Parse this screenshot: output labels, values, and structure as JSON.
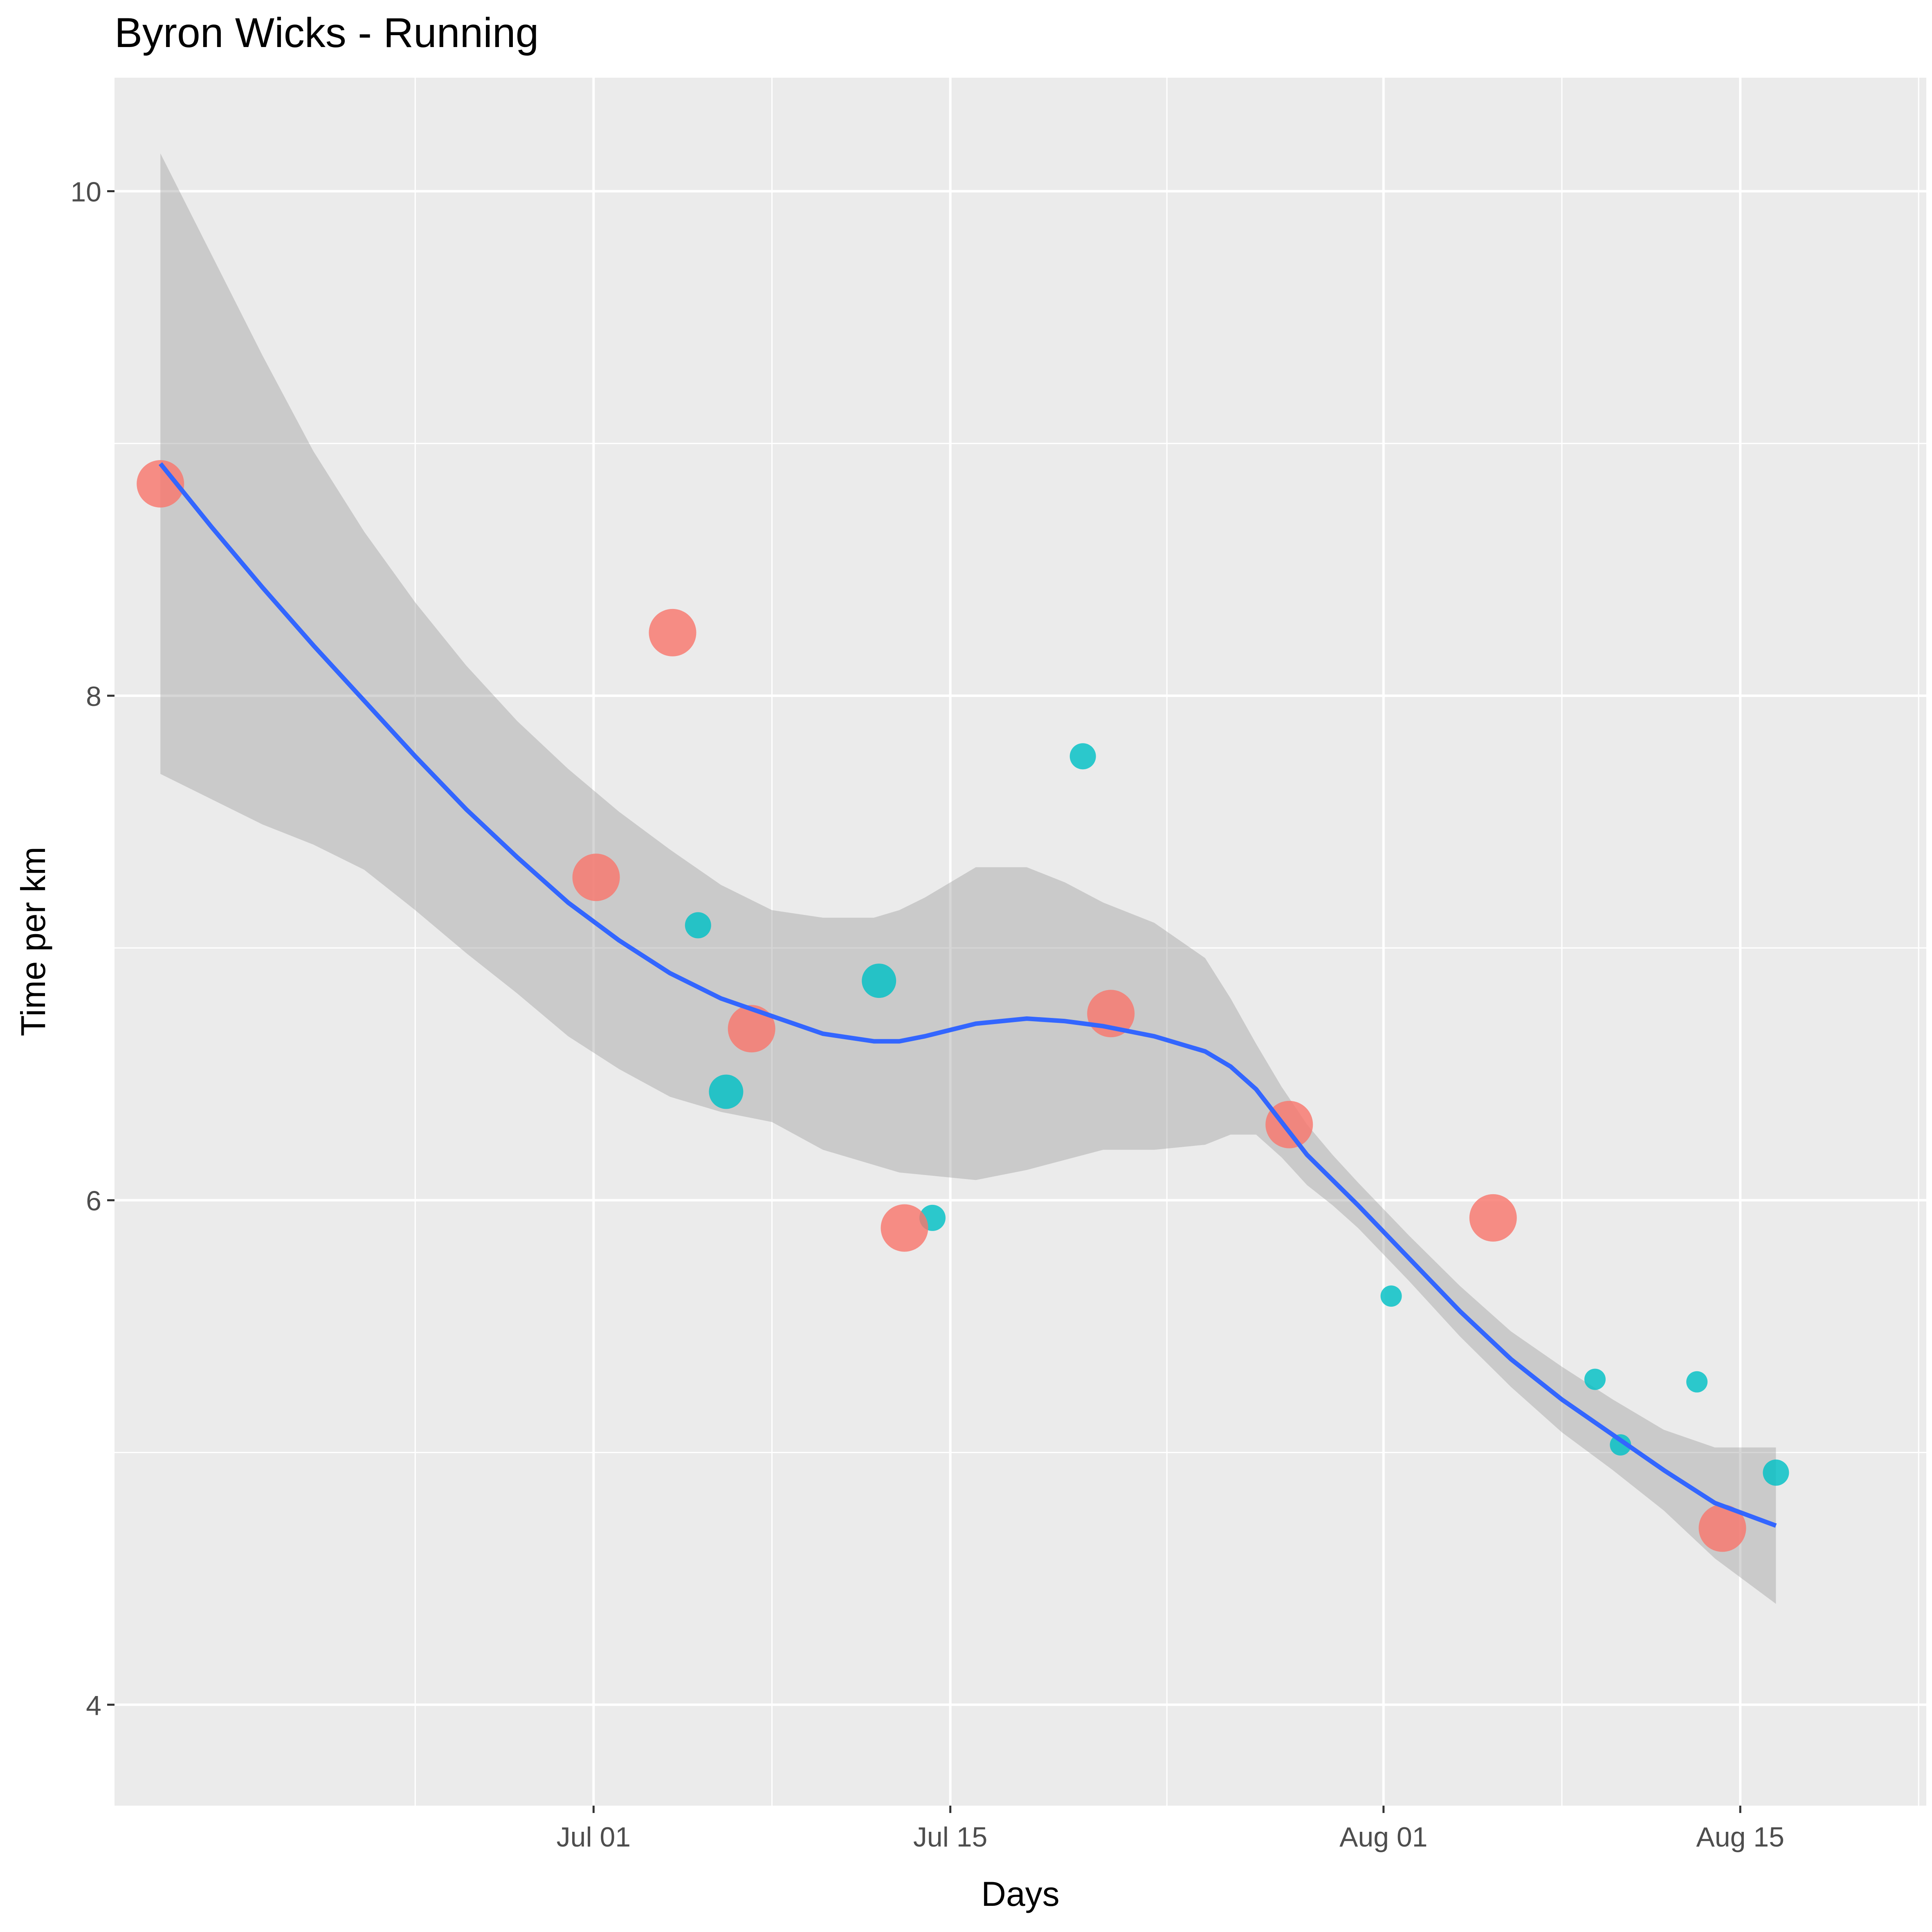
{
  "chart_data": {
    "type": "scatter",
    "title": "Byron Wicks  -  Running",
    "xlabel": "Days",
    "ylabel": "Time per km",
    "x_ticks": [
      {
        "day": 30,
        "label": "Jul 01"
      },
      {
        "day": 44,
        "label": "Jul 15"
      },
      {
        "day": 61,
        "label": "Aug 01"
      },
      {
        "day": 75,
        "label": "Aug 15"
      }
    ],
    "y_ticks": [
      4,
      6,
      8,
      10
    ],
    "xlim": [
      11.2,
      82.3
    ],
    "ylim": [
      3.6,
      10.45
    ],
    "grid": true,
    "colors": {
      "panel": "#EBEBEB",
      "grid": "#FFFFFF",
      "red": "#F8766D",
      "teal": "#00BFC4",
      "smooth_line": "#3366FF",
      "band": "#C0C0C0"
    },
    "points": [
      {
        "day": 13.0,
        "value": 8.84,
        "group": "red",
        "size": 3
      },
      {
        "day": 30.1,
        "value": 7.28,
        "group": "red",
        "size": 3
      },
      {
        "day": 33.1,
        "value": 8.25,
        "group": "red",
        "size": 3
      },
      {
        "day": 34.1,
        "value": 7.09,
        "group": "teal",
        "size": 1
      },
      {
        "day": 35.2,
        "value": 6.43,
        "group": "teal",
        "size": 2
      },
      {
        "day": 36.2,
        "value": 6.68,
        "group": "red",
        "size": 3
      },
      {
        "day": 41.2,
        "value": 6.87,
        "group": "teal",
        "size": 2
      },
      {
        "day": 43.3,
        "value": 5.93,
        "group": "teal",
        "size": 1
      },
      {
        "day": 42.2,
        "value": 5.89,
        "group": "red",
        "size": 3
      },
      {
        "day": 49.2,
        "value": 7.76,
        "group": "teal",
        "size": 1
      },
      {
        "day": 50.3,
        "value": 6.74,
        "group": "red",
        "size": 3
      },
      {
        "day": 57.3,
        "value": 6.3,
        "group": "red",
        "size": 3
      },
      {
        "day": 61.3,
        "value": 5.62,
        "group": "teal",
        "size": 0
      },
      {
        "day": 65.3,
        "value": 5.93,
        "group": "red",
        "size": 3
      },
      {
        "day": 69.3,
        "value": 5.29,
        "group": "teal",
        "size": 0
      },
      {
        "day": 70.3,
        "value": 5.03,
        "group": "teal",
        "size": 0
      },
      {
        "day": 73.3,
        "value": 5.28,
        "group": "teal",
        "size": 0
      },
      {
        "day": 74.3,
        "value": 4.7,
        "group": "red",
        "size": 3
      },
      {
        "day": 76.4,
        "value": 4.92,
        "group": "teal",
        "size": 1
      }
    ],
    "smooth": {
      "x": [
        13.0,
        15,
        17,
        19,
        21,
        23,
        25,
        27,
        29,
        31,
        33,
        35,
        37,
        39,
        41,
        42,
        43,
        45,
        47,
        48.5,
        50,
        52,
        54,
        55,
        56,
        57,
        58,
        59,
        60,
        62,
        64,
        66,
        68,
        70,
        72,
        74,
        76.4
      ],
      "y": [
        8.92,
        8.67,
        8.43,
        8.2,
        7.98,
        7.76,
        7.55,
        7.36,
        7.18,
        7.03,
        6.9,
        6.8,
        6.73,
        6.66,
        6.63,
        6.63,
        6.65,
        6.7,
        6.72,
        6.71,
        6.69,
        6.65,
        6.59,
        6.53,
        6.44,
        6.31,
        6.18,
        6.08,
        5.98,
        5.77,
        5.56,
        5.37,
        5.21,
        5.07,
        4.93,
        4.8,
        4.71
      ],
      "upper": [
        10.15,
        9.75,
        9.35,
        8.97,
        8.65,
        8.37,
        8.12,
        7.9,
        7.71,
        7.54,
        7.39,
        7.25,
        7.15,
        7.12,
        7.12,
        7.15,
        7.2,
        7.32,
        7.32,
        7.26,
        7.18,
        7.1,
        6.96,
        6.8,
        6.62,
        6.45,
        6.3,
        6.18,
        6.07,
        5.86,
        5.66,
        5.48,
        5.34,
        5.21,
        5.09,
        5.02,
        5.02
      ],
      "lower": [
        7.69,
        7.59,
        7.49,
        7.41,
        7.31,
        7.15,
        6.98,
        6.82,
        6.65,
        6.52,
        6.41,
        6.35,
        6.31,
        6.2,
        6.14,
        6.11,
        6.1,
        6.08,
        6.12,
        6.16,
        6.2,
        6.2,
        6.22,
        6.26,
        6.26,
        6.17,
        6.06,
        5.98,
        5.89,
        5.68,
        5.46,
        5.26,
        5.08,
        4.93,
        4.77,
        4.58,
        4.4
      ]
    }
  }
}
